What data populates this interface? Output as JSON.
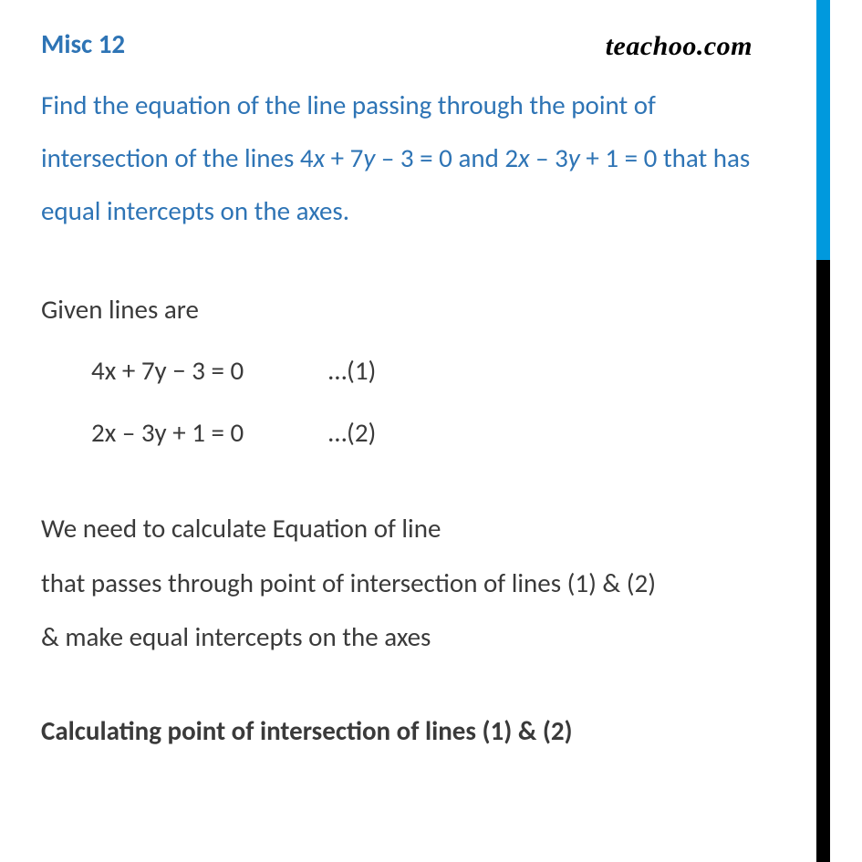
{
  "header": {
    "title": "Misc 12",
    "logo": "teachoo.com"
  },
  "question": {
    "line1_pre": "Find the equation of the line passing through the point of",
    "line2_pre": "intersection of the lines 4",
    "x": "x",
    "plus7": " + 7",
    "y": "y",
    "minus3": " – 3 = 0 and 2",
    "minus3y": " – 3",
    "plus1": " + 1 = 0 that has",
    "line3": "equal intercepts on the axes."
  },
  "given": {
    "label": "Given lines are",
    "eq1": "4x  + 7y − 3 = 0",
    "eq1_label": "…(1)",
    "eq2": "2x – 3y + 1 = 0",
    "eq2_label": "…(2)"
  },
  "explain": {
    "l1": "We need to calculate Equation of line",
    "l2": "that passes through point of intersection of lines (1) & (2)",
    "l3": "& make equal intercepts on the axes"
  },
  "heading": "Calculating point of intersection of lines (1) & (2)",
  "colors": {
    "accent_blue": "#2e74b5",
    "bar_blue": "#0099dd",
    "text_dark": "#3a3a3a"
  }
}
